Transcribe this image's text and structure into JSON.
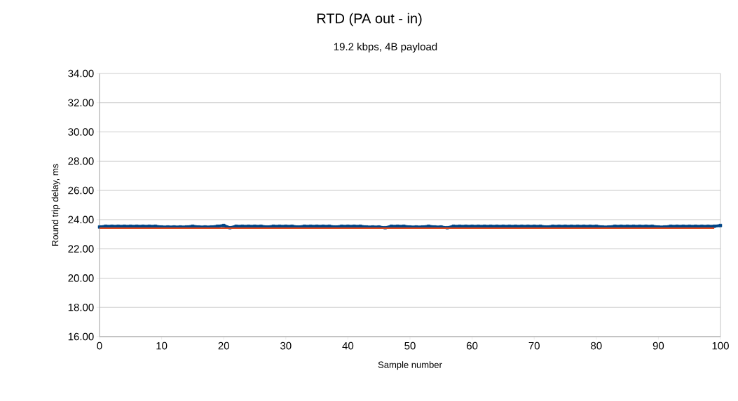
{
  "chart_data": {
    "type": "line",
    "title": "RTD (PA out - in)",
    "subtitle": "19.2 kbps, 4B payload",
    "xlabel": "Sample number",
    "ylabel": "Round trip delay, ms",
    "x": [
      0,
      1,
      2,
      3,
      4,
      5,
      6,
      7,
      8,
      9,
      10,
      11,
      12,
      13,
      14,
      15,
      16,
      17,
      18,
      19,
      20,
      21,
      22,
      23,
      24,
      25,
      26,
      27,
      28,
      29,
      30,
      31,
      32,
      33,
      34,
      35,
      36,
      37,
      38,
      39,
      40,
      41,
      42,
      43,
      44,
      45,
      46,
      47,
      48,
      49,
      50,
      51,
      52,
      53,
      54,
      55,
      56,
      57,
      58,
      59,
      60,
      61,
      62,
      63,
      64,
      65,
      66,
      67,
      68,
      69,
      70,
      71,
      72,
      73,
      74,
      75,
      76,
      77,
      78,
      79,
      80,
      81,
      82,
      83,
      84,
      85,
      86,
      87,
      88,
      89,
      90,
      91,
      92,
      93,
      94,
      95,
      96,
      97,
      98,
      99,
      100
    ],
    "series": [
      {
        "color": "#004586",
        "marker": "square",
        "values": [
          23.5,
          23.55,
          23.55,
          23.55,
          23.55,
          23.55,
          23.55,
          23.55,
          23.55,
          23.55,
          23.5,
          23.5,
          23.5,
          23.5,
          23.5,
          23.55,
          23.5,
          23.5,
          23.5,
          23.55,
          23.6,
          23.45,
          23.55,
          23.55,
          23.55,
          23.55,
          23.55,
          23.5,
          23.55,
          23.55,
          23.55,
          23.55,
          23.5,
          23.55,
          23.55,
          23.55,
          23.55,
          23.55,
          23.5,
          23.55,
          23.55,
          23.55,
          23.55,
          23.5,
          23.5,
          23.5,
          23.45,
          23.55,
          23.55,
          23.55,
          23.5,
          23.5,
          23.5,
          23.55,
          23.5,
          23.5,
          23.45,
          23.55,
          23.55,
          23.55,
          23.55,
          23.55,
          23.55,
          23.55,
          23.55,
          23.55,
          23.55,
          23.55,
          23.55,
          23.55,
          23.55,
          23.55,
          23.5,
          23.55,
          23.55,
          23.55,
          23.55,
          23.55,
          23.55,
          23.55,
          23.55,
          23.5,
          23.5,
          23.55,
          23.55,
          23.55,
          23.55,
          23.55,
          23.55,
          23.55,
          23.5,
          23.5,
          23.55,
          23.55,
          23.55,
          23.55,
          23.55,
          23.55,
          23.55,
          23.55,
          23.6
        ]
      },
      {
        "color": "#e0481c",
        "marker": "none",
        "x": [
          0,
          99
        ],
        "values": [
          23.42,
          23.42
        ]
      }
    ],
    "xlim": [
      0,
      100
    ],
    "xticks": [
      0,
      10,
      20,
      30,
      40,
      50,
      60,
      70,
      80,
      90,
      100
    ],
    "ylim": [
      16,
      34
    ],
    "yticks": [
      {
        "value": 16,
        "label": "16.00"
      },
      {
        "value": 18,
        "label": "18.00"
      },
      {
        "value": 20,
        "label": "20.00"
      },
      {
        "value": 22,
        "label": "22.00"
      },
      {
        "value": 24,
        "label": "24.00"
      },
      {
        "value": 26,
        "label": "26.00"
      },
      {
        "value": 28,
        "label": "28.00"
      },
      {
        "value": 30,
        "label": "30.00"
      },
      {
        "value": 32,
        "label": "32.00"
      },
      {
        "value": 34,
        "label": "34.00"
      }
    ],
    "grid": "y"
  }
}
